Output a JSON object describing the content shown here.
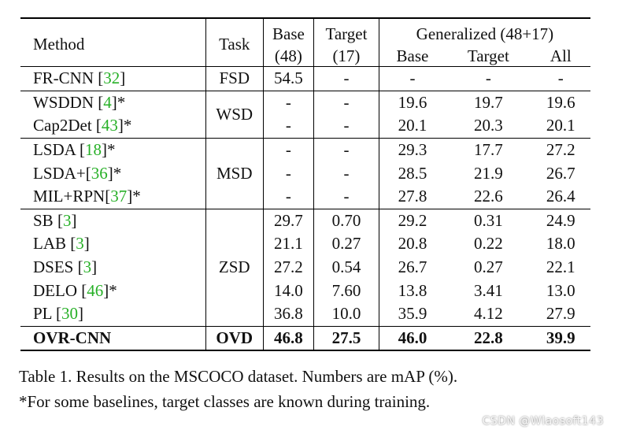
{
  "header": {
    "method": "Method",
    "task": "Task",
    "base_line1": "Base",
    "base_line2": "(48)",
    "target_line1": "Target",
    "target_line2": "(17)",
    "generalized": "Generalized (48+17)",
    "gen_base": "Base",
    "gen_target": "Target",
    "gen_all": "All"
  },
  "groups": [
    {
      "task": "FSD",
      "rows": [
        {
          "name": "FR-CNN ",
          "ref": "32",
          "suffix": "",
          "base": "54.5",
          "target": "-",
          "g_base": "-",
          "g_target": "-",
          "g_all": "-"
        }
      ]
    },
    {
      "task": "WSD",
      "rows": [
        {
          "name": "WSDDN ",
          "ref": "4",
          "suffix": "*",
          "base": "-",
          "target": "-",
          "g_base": "19.6",
          "g_target": "19.7",
          "g_all": "19.6"
        },
        {
          "name": "Cap2Det ",
          "ref": "43",
          "suffix": "*",
          "base": "-",
          "target": "-",
          "g_base": "20.1",
          "g_target": "20.3",
          "g_all": "20.1"
        }
      ]
    },
    {
      "task": "MSD",
      "rows": [
        {
          "name": "LSDA ",
          "ref": "18",
          "suffix": "*",
          "base": "-",
          "target": "-",
          "g_base": "29.3",
          "g_target": "17.7",
          "g_all": "27.2"
        },
        {
          "name": "LSDA+",
          "ref": "36",
          "suffix": "*",
          "base": "-",
          "target": "-",
          "g_base": "28.5",
          "g_target": "21.9",
          "g_all": "26.7"
        },
        {
          "name": "MIL+RPN",
          "ref": "37",
          "suffix": "*",
          "base": "-",
          "target": "-",
          "g_base": "27.8",
          "g_target": "22.6",
          "g_all": "26.4"
        }
      ]
    },
    {
      "task": "ZSD",
      "rows": [
        {
          "name": "SB ",
          "ref": "3",
          "suffix": "",
          "base": "29.7",
          "target": "0.70",
          "g_base": "29.2",
          "g_target": "0.31",
          "g_all": "24.9"
        },
        {
          "name": "LAB ",
          "ref": "3",
          "suffix": "",
          "base": "21.1",
          "target": "0.27",
          "g_base": "20.8",
          "g_target": "0.22",
          "g_all": "18.0"
        },
        {
          "name": "DSES ",
          "ref": "3",
          "suffix": "",
          "base": "27.2",
          "target": "0.54",
          "g_base": "26.7",
          "g_target": "0.27",
          "g_all": "22.1"
        },
        {
          "name": "DELO ",
          "ref": "46",
          "suffix": "*",
          "base": "14.0",
          "target": "7.60",
          "g_base": "13.8",
          "g_target": "3.41",
          "g_all": "13.0"
        },
        {
          "name": "PL ",
          "ref": "30",
          "suffix": "",
          "base": "36.8",
          "target": "10.0",
          "g_base": "35.9",
          "g_target": "4.12",
          "g_all": "27.9"
        }
      ]
    }
  ],
  "ours": {
    "name": "OVR-CNN",
    "task": "OVD",
    "base": "46.8",
    "target": "27.5",
    "g_base": "46.0",
    "g_target": "22.8",
    "g_all": "39.9"
  },
  "caption": {
    "line1": "Table 1. Results on the MSCOCO dataset. Numbers are mAP (%).",
    "line2": "*For some baselines, target classes are known during training."
  },
  "watermark": "CSDN @Wlaosoft143",
  "colors": {
    "ref_link": "#27b027"
  }
}
